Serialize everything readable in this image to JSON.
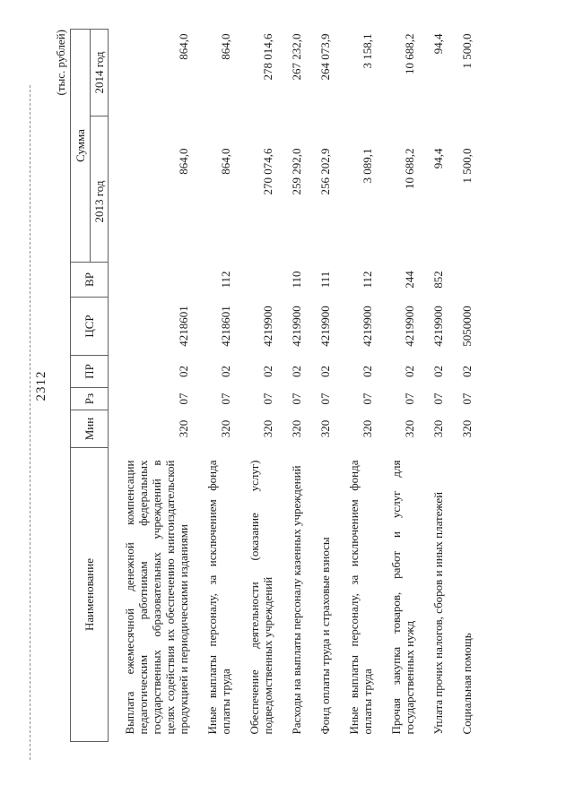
{
  "page": {
    "number": "2312",
    "units_note": "(тыс. рублей)"
  },
  "table": {
    "headers": {
      "name": "Наименование",
      "min": "Мин",
      "rz": "Рз",
      "pr": "ПР",
      "csr": "ЦСР",
      "vr": "ВР",
      "sum": "Сумма",
      "year2013": "2013 год",
      "year2014": "2014 год"
    },
    "rows": [
      {
        "name": "Выплата ежемесячной денежной компенсации педагогическим работникам федеральных государственных образовательных учреждений в целях содействия их обеспечению книгоиздательской продукцией и периодическими изданиями",
        "min": "320",
        "rz": "07",
        "pr": "02",
        "csr": "4218601",
        "vr": "",
        "y2013": "864,0",
        "y2014": "864,0"
      },
      {
        "name": "Иные выплаты персоналу, за исключением фонда оплаты труда",
        "min": "320",
        "rz": "07",
        "pr": "02",
        "csr": "4218601",
        "vr": "112",
        "y2013": "864,0",
        "y2014": "864,0"
      },
      {
        "name": "Обеспечение деятельности (оказание услуг) подведомственных учреждений",
        "min": "320",
        "rz": "07",
        "pr": "02",
        "csr": "4219900",
        "vr": "",
        "y2013": "270 074,6",
        "y2014": "278 014,6"
      },
      {
        "name": "Расходы на выплаты персоналу казенных учреждений",
        "min": "320",
        "rz": "07",
        "pr": "02",
        "csr": "4219900",
        "vr": "110",
        "y2013": "259 292,0",
        "y2014": "267 232,0"
      },
      {
        "name": "Фонд оплаты труда и страховые взносы",
        "min": "320",
        "rz": "07",
        "pr": "02",
        "csr": "4219900",
        "vr": "111",
        "y2013": "256 202,9",
        "y2014": "264 073,9"
      },
      {
        "name": "Иные выплаты персоналу, за исключением фонда оплаты труда",
        "min": "320",
        "rz": "07",
        "pr": "02",
        "csr": "4219900",
        "vr": "112",
        "y2013": "3 089,1",
        "y2014": "3 158,1"
      },
      {
        "name": "Прочая закупка товаров, работ и услуг для государственных нужд",
        "min": "320",
        "rz": "07",
        "pr": "02",
        "csr": "4219900",
        "vr": "244",
        "y2013": "10 688,2",
        "y2014": "10 688,2"
      },
      {
        "name": "Уплата прочих налогов, сборов и иных платежей",
        "min": "320",
        "rz": "07",
        "pr": "02",
        "csr": "4219900",
        "vr": "852",
        "y2013": "94,4",
        "y2014": "94,4"
      },
      {
        "name": "Социальная помощь",
        "min": "320",
        "rz": "07",
        "pr": "02",
        "csr": "5050000",
        "vr": "",
        "y2013": "1 500,0",
        "y2014": "1 500,0"
      }
    ]
  }
}
